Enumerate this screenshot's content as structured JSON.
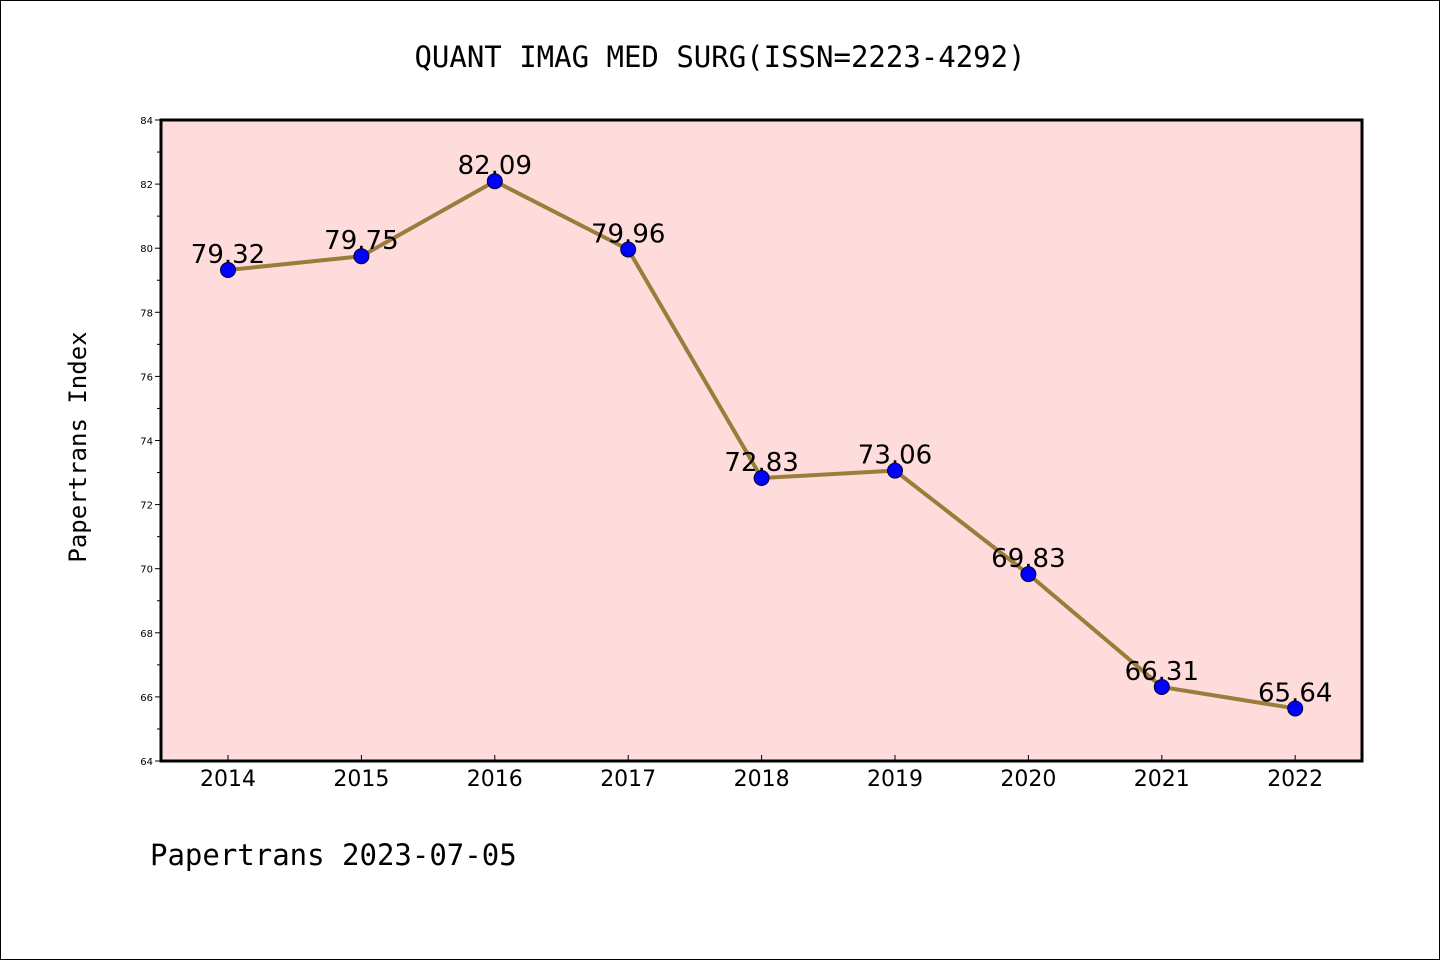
{
  "chart_data": {
    "type": "line",
    "title": "QUANT IMAG MED SURG(ISSN=2223-4292)",
    "xlabel": "",
    "ylabel": "Papertrans Index",
    "footer": "Papertrans 2023-07-05",
    "categories": [
      "2014",
      "2015",
      "2016",
      "2017",
      "2018",
      "2019",
      "2020",
      "2021",
      "2022"
    ],
    "values": [
      79.32,
      79.75,
      82.09,
      79.96,
      72.83,
      73.06,
      69.83,
      66.31,
      65.64
    ],
    "data_labels": [
      "79.32",
      "79.75",
      "82.09",
      "79.96",
      "72.83",
      "73.06",
      "69.83",
      "66.31",
      "65.64"
    ],
    "ylim": [
      64,
      84
    ],
    "y_ticks": [
      "64",
      "66",
      "68",
      "70",
      "72",
      "74",
      "76",
      "78",
      "80",
      "82",
      "84"
    ],
    "grid": false,
    "colors": {
      "plot_background": "#ffdcdc",
      "line": "#9a7d3a",
      "marker": "#0000ff",
      "axes": "#000000"
    }
  }
}
